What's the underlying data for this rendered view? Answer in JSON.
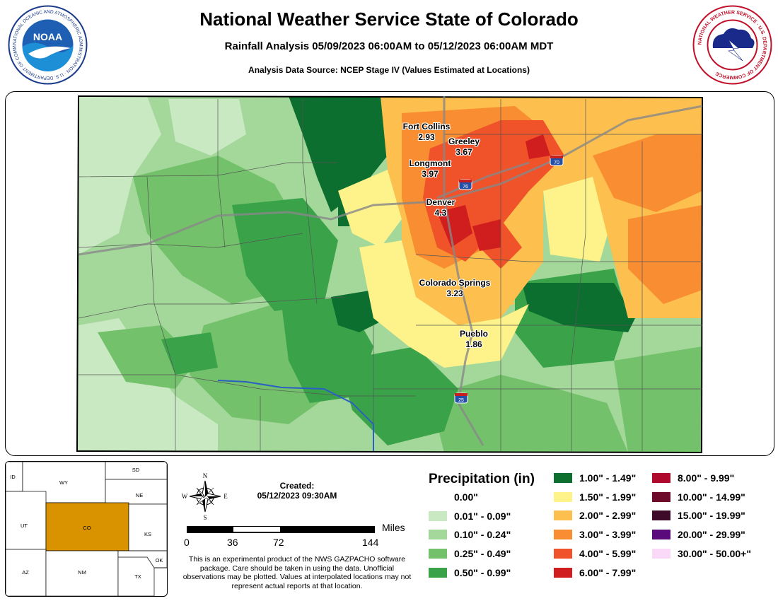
{
  "header": {
    "title": "National Weather Service State of Colorado",
    "subtitle": "Rainfall Analysis 05/09/2023 06:00AM to 05/12/2023 06:00AM MDT",
    "source": "Analysis Data Source: NCEP Stage IV (Values Estimated at Locations)",
    "noaa_logo_text": "NOAA",
    "noaa_ring_text": "NATIONAL OCEANIC AND ATMOSPHERIC ADMINISTRATION · U.S. DEPARTMENT OF COMMERCE",
    "nws_ring_text": "NATIONAL WEATHER SERVICE · U.S. DEPARTMENT OF COMMERCE"
  },
  "cities": [
    {
      "name": "Fort Collins",
      "value": "2.93"
    },
    {
      "name": "Greeley",
      "value": "3.67"
    },
    {
      "name": "Longmont",
      "value": "3.97"
    },
    {
      "name": "Denver",
      "value": "4.3"
    },
    {
      "name": "Colorado Springs",
      "value": "3.23"
    },
    {
      "name": "Pueblo",
      "value": "1.86"
    }
  ],
  "highways": [
    "70",
    "76",
    "25"
  ],
  "inset_map": {
    "states": [
      "WY",
      "SD",
      "NE",
      "ID",
      "UT",
      "CO",
      "KS",
      "AZ",
      "NM",
      "TX",
      "OK"
    ],
    "highlight_color": "#DA9300"
  },
  "created": {
    "label": "Created:",
    "value": "05/12/2023 09:30AM"
  },
  "compass": {
    "n": "N",
    "s": "S",
    "e": "E",
    "w": "W"
  },
  "scale": {
    "unit": "Miles",
    "ticks": [
      "0",
      "36",
      "72",
      "144"
    ]
  },
  "disclaimer": "This is an experimental product of the NWS GAZPACHO software package. Care should be taken in using the data. Unofficial observations may be plotted. Values at interpolated locations may not represent actual reports at that location.",
  "legend": {
    "title": "Precipitation (in)",
    "items": [
      {
        "label": "0.00\"",
        "color": "#FFFFFF"
      },
      {
        "label": "0.01\" - 0.09\"",
        "color": "#C9E9C2"
      },
      {
        "label": "0.10\" - 0.24\"",
        "color": "#A3D89A"
      },
      {
        "label": "0.25\" - 0.49\"",
        "color": "#73C16A"
      },
      {
        "label": "0.50\" - 0.99\"",
        "color": "#3AA34A"
      },
      {
        "label": "1.00\" - 1.49\"",
        "color": "#0C6E2F"
      },
      {
        "label": "1.50\" - 1.99\"",
        "color": "#FDF38A"
      },
      {
        "label": "2.00\" - 2.99\"",
        "color": "#FDBF4D"
      },
      {
        "label": "3.00\" - 3.99\"",
        "color": "#F98D32"
      },
      {
        "label": "4.00\" - 5.99\"",
        "color": "#F0522A"
      },
      {
        "label": "6.00\" - 7.99\"",
        "color": "#D01E1E"
      },
      {
        "label": "8.00\" - 9.99\"",
        "color": "#B0092E"
      },
      {
        "label": "10.00\" - 14.99\"",
        "color": "#6E0A2A"
      },
      {
        "label": "15.00\" - 19.99\"",
        "color": "#3D0A2A"
      },
      {
        "label": "20.00\" - 29.99\"",
        "color": "#5A0A7A"
      },
      {
        "label": "30.00\" - 50.00+\"",
        "color": "#FAD8F7"
      }
    ]
  }
}
